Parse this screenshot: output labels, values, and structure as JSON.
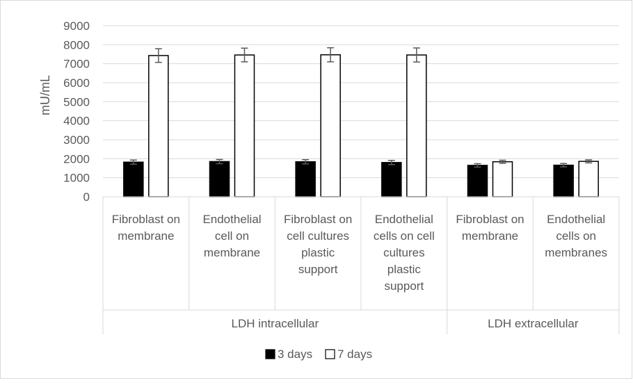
{
  "chart_data": {
    "type": "bar",
    "ylabel": "mU/mL",
    "ylim": [
      0,
      9000
    ],
    "yticks": [
      0,
      1000,
      2000,
      3000,
      4000,
      5000,
      6000,
      7000,
      8000,
      9000
    ],
    "grid": true,
    "legend_position": "bottom",
    "categories": [
      {
        "label": [
          "Fibroblast on",
          "membrane"
        ],
        "group": "LDH intracellular"
      },
      {
        "label": [
          "Endothelial",
          "cell on",
          "membrane"
        ],
        "group": "LDH intracellular"
      },
      {
        "label": [
          "Fibroblast on",
          "cell cultures",
          "plastic",
          "support"
        ],
        "group": "LDH intracellular"
      },
      {
        "label": [
          "Endothelial",
          "cells on cell",
          "cultures",
          "plastic",
          "support"
        ],
        "group": "LDH intracellular"
      },
      {
        "label": [
          "Fibroblast on",
          "membrane"
        ],
        "group": "LDH extracellular"
      },
      {
        "label": [
          "Endothelial",
          "cells on",
          "membranes"
        ],
        "group": "LDH extracellular"
      }
    ],
    "groups": [
      "LDH intracellular",
      "LDH extracellular"
    ],
    "series": [
      {
        "name": "3 days",
        "color": "#000000",
        "values": [
          1820,
          1850,
          1840,
          1800,
          1650,
          1660
        ],
        "errors": [
          110,
          110,
          110,
          110,
          90,
          90
        ]
      },
      {
        "name": "7 days",
        "color": "#ffffff",
        "values": [
          7430,
          7460,
          7470,
          7460,
          1840,
          1860
        ],
        "errors": [
          360,
          360,
          370,
          370,
          80,
          80
        ]
      }
    ]
  }
}
